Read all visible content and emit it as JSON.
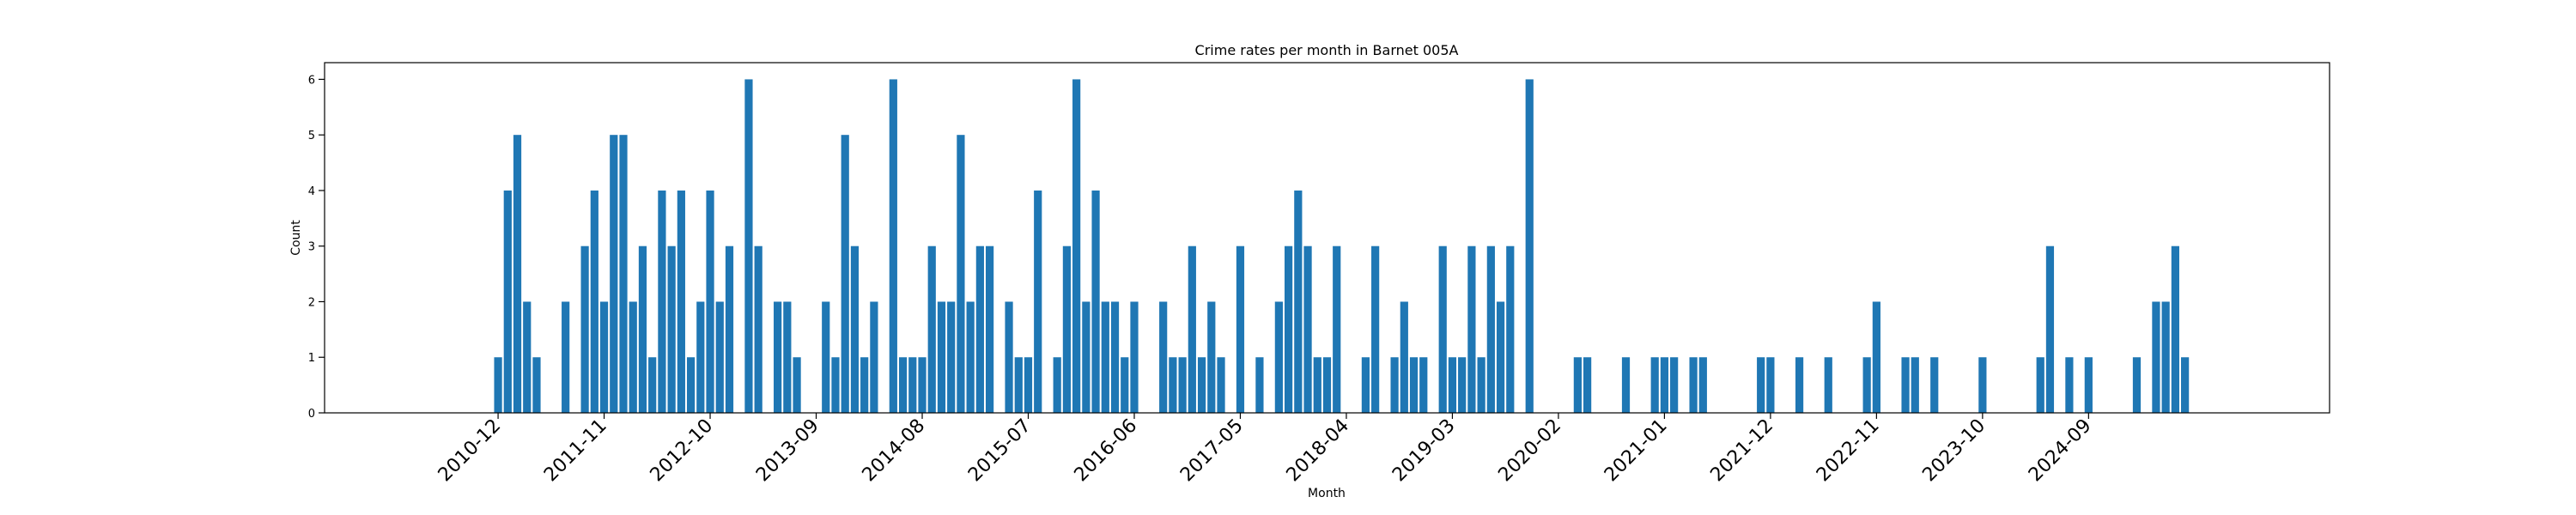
{
  "chart_data": {
    "type": "bar",
    "title": "Crime rates per month in Barnet 005A",
    "xlabel": "Month",
    "ylabel": "Count",
    "ylim": [
      0,
      6.3
    ],
    "yticks": [
      0,
      1,
      2,
      3,
      4,
      5,
      6
    ],
    "xlim": [
      "2009-06",
      "2026-10"
    ],
    "xticks": [
      "2010-12",
      "2011-11",
      "2012-10",
      "2013-09",
      "2014-08",
      "2015-07",
      "2016-06",
      "2017-05",
      "2018-04",
      "2019-03",
      "2020-02",
      "2021-01",
      "2021-12",
      "2022-11",
      "2023-10",
      "2024-09"
    ],
    "grid": false,
    "legend": "none",
    "color": "#1f77b4",
    "points": [
      {
        "x": "2010-12",
        "y": 1
      },
      {
        "x": "2011-01",
        "y": 4
      },
      {
        "x": "2011-02",
        "y": 5
      },
      {
        "x": "2011-03",
        "y": 2
      },
      {
        "x": "2011-04",
        "y": 1
      },
      {
        "x": "2011-07",
        "y": 2
      },
      {
        "x": "2011-09",
        "y": 3
      },
      {
        "x": "2011-10",
        "y": 4
      },
      {
        "x": "2011-11",
        "y": 2
      },
      {
        "x": "2011-12",
        "y": 5
      },
      {
        "x": "2012-01",
        "y": 5
      },
      {
        "x": "2012-02",
        "y": 2
      },
      {
        "x": "2012-03",
        "y": 3
      },
      {
        "x": "2012-04",
        "y": 1
      },
      {
        "x": "2012-05",
        "y": 4
      },
      {
        "x": "2012-06",
        "y": 3
      },
      {
        "x": "2012-07",
        "y": 4
      },
      {
        "x": "2012-08",
        "y": 1
      },
      {
        "x": "2012-09",
        "y": 2
      },
      {
        "x": "2012-10",
        "y": 4
      },
      {
        "x": "2012-11",
        "y": 2
      },
      {
        "x": "2012-12",
        "y": 3
      },
      {
        "x": "2013-02",
        "y": 6
      },
      {
        "x": "2013-03",
        "y": 3
      },
      {
        "x": "2013-05",
        "y": 2
      },
      {
        "x": "2013-06",
        "y": 2
      },
      {
        "x": "2013-07",
        "y": 1
      },
      {
        "x": "2013-10",
        "y": 2
      },
      {
        "x": "2013-11",
        "y": 1
      },
      {
        "x": "2013-12",
        "y": 5
      },
      {
        "x": "2014-01",
        "y": 3
      },
      {
        "x": "2014-02",
        "y": 1
      },
      {
        "x": "2014-03",
        "y": 2
      },
      {
        "x": "2014-05",
        "y": 6
      },
      {
        "x": "2014-06",
        "y": 1
      },
      {
        "x": "2014-07",
        "y": 1
      },
      {
        "x": "2014-08",
        "y": 1
      },
      {
        "x": "2014-09",
        "y": 3
      },
      {
        "x": "2014-10",
        "y": 2
      },
      {
        "x": "2014-11",
        "y": 2
      },
      {
        "x": "2014-12",
        "y": 5
      },
      {
        "x": "2015-01",
        "y": 2
      },
      {
        "x": "2015-02",
        "y": 3
      },
      {
        "x": "2015-03",
        "y": 3
      },
      {
        "x": "2015-05",
        "y": 2
      },
      {
        "x": "2015-06",
        "y": 1
      },
      {
        "x": "2015-07",
        "y": 1
      },
      {
        "x": "2015-08",
        "y": 4
      },
      {
        "x": "2015-10",
        "y": 1
      },
      {
        "x": "2015-11",
        "y": 3
      },
      {
        "x": "2015-12",
        "y": 6
      },
      {
        "x": "2016-01",
        "y": 2
      },
      {
        "x": "2016-02",
        "y": 4
      },
      {
        "x": "2016-03",
        "y": 2
      },
      {
        "x": "2016-04",
        "y": 2
      },
      {
        "x": "2016-05",
        "y": 1
      },
      {
        "x": "2016-06",
        "y": 2
      },
      {
        "x": "2016-09",
        "y": 2
      },
      {
        "x": "2016-10",
        "y": 1
      },
      {
        "x": "2016-11",
        "y": 1
      },
      {
        "x": "2016-12",
        "y": 3
      },
      {
        "x": "2017-01",
        "y": 1
      },
      {
        "x": "2017-02",
        "y": 2
      },
      {
        "x": "2017-03",
        "y": 1
      },
      {
        "x": "2017-05",
        "y": 3
      },
      {
        "x": "2017-07",
        "y": 1
      },
      {
        "x": "2017-09",
        "y": 2
      },
      {
        "x": "2017-10",
        "y": 3
      },
      {
        "x": "2017-11",
        "y": 4
      },
      {
        "x": "2017-12",
        "y": 3
      },
      {
        "x": "2018-01",
        "y": 1
      },
      {
        "x": "2018-02",
        "y": 1
      },
      {
        "x": "2018-03",
        "y": 3
      },
      {
        "x": "2018-06",
        "y": 1
      },
      {
        "x": "2018-07",
        "y": 3
      },
      {
        "x": "2018-09",
        "y": 1
      },
      {
        "x": "2018-10",
        "y": 2
      },
      {
        "x": "2018-11",
        "y": 1
      },
      {
        "x": "2018-12",
        "y": 1
      },
      {
        "x": "2019-02",
        "y": 3
      },
      {
        "x": "2019-03",
        "y": 1
      },
      {
        "x": "2019-04",
        "y": 1
      },
      {
        "x": "2019-05",
        "y": 3
      },
      {
        "x": "2019-06",
        "y": 1
      },
      {
        "x": "2019-07",
        "y": 3
      },
      {
        "x": "2019-08",
        "y": 2
      },
      {
        "x": "2019-09",
        "y": 3
      },
      {
        "x": "2019-11",
        "y": 6
      },
      {
        "x": "2020-04",
        "y": 1
      },
      {
        "x": "2020-05",
        "y": 1
      },
      {
        "x": "2020-09",
        "y": 1
      },
      {
        "x": "2020-12",
        "y": 1
      },
      {
        "x": "2021-01",
        "y": 1
      },
      {
        "x": "2021-02",
        "y": 1
      },
      {
        "x": "2021-04",
        "y": 1
      },
      {
        "x": "2021-05",
        "y": 1
      },
      {
        "x": "2021-11",
        "y": 1
      },
      {
        "x": "2021-12",
        "y": 1
      },
      {
        "x": "2022-03",
        "y": 1
      },
      {
        "x": "2022-06",
        "y": 1
      },
      {
        "x": "2022-10",
        "y": 1
      },
      {
        "x": "2022-11",
        "y": 2
      },
      {
        "x": "2023-02",
        "y": 1
      },
      {
        "x": "2023-03",
        "y": 1
      },
      {
        "x": "2023-05",
        "y": 1
      },
      {
        "x": "2023-10",
        "y": 1
      },
      {
        "x": "2024-04",
        "y": 1
      },
      {
        "x": "2024-05",
        "y": 3
      },
      {
        "x": "2024-07",
        "y": 1
      },
      {
        "x": "2024-09",
        "y": 1
      },
      {
        "x": "2025-02",
        "y": 1
      },
      {
        "x": "2025-04",
        "y": 2
      },
      {
        "x": "2025-05",
        "y": 2
      },
      {
        "x": "2025-06",
        "y": 3
      },
      {
        "x": "2025-07",
        "y": 1
      }
    ]
  }
}
